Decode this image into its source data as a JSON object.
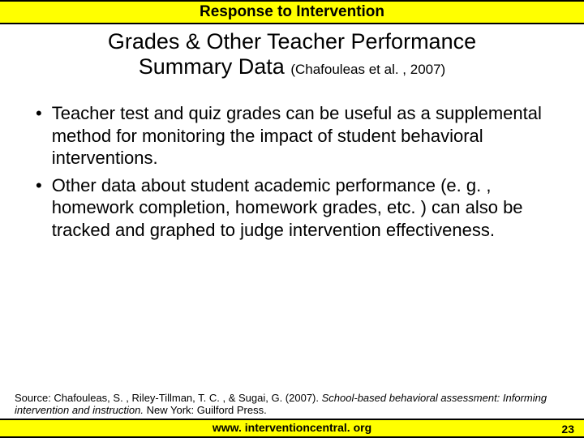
{
  "header": {
    "title": "Response to Intervention"
  },
  "title": {
    "line1": "Grades & Other Teacher Performance",
    "line2": "Summary Data ",
    "citation": "(Chafouleas et al. , 2007)"
  },
  "bullets": [
    "Teacher test and quiz grades can be useful as a supplemental method for monitoring the impact of student behavioral interventions.",
    "Other data about student academic performance (e. g. , homework completion, homework grades, etc. ) can also be tracked and graphed to judge intervention effectiveness."
  ],
  "source": {
    "prefix": "Source: Chafouleas, S. , Riley-Tillman, T. C. , & Sugai, G. (2007). ",
    "italic": "School-based behavioral assessment: Informing intervention and instruction. ",
    "suffix": "New York: Guilford Press."
  },
  "footer": {
    "url": "www. interventioncentral. org",
    "page": "23"
  },
  "colors": {
    "highlight": "#ffff00",
    "border": "#000000",
    "text": "#000000",
    "bg": "#ffffff"
  }
}
